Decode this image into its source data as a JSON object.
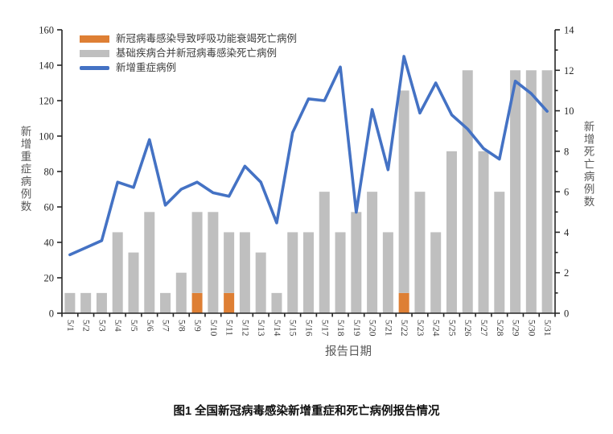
{
  "chart_data": {
    "type": "combo-bar-line",
    "categories": [
      "5/1",
      "5/2",
      "5/3",
      "5/4",
      "5/5",
      "5/6",
      "5/7",
      "5/8",
      "5/9",
      "5/10",
      "5/11",
      "5/12",
      "5/13",
      "5/14",
      "5/15",
      "5/16",
      "5/17",
      "5/18",
      "5/19",
      "5/20",
      "5/21",
      "5/22",
      "5/23",
      "5/24",
      "5/25",
      "5/26",
      "5/27",
      "5/28",
      "5/29",
      "5/30",
      "5/31"
    ],
    "series": [
      {
        "name": "新冠病毒感染导致呼吸功能衰竭死亡病例",
        "type": "bar",
        "stack": "deaths",
        "axis": "right",
        "color": "#DE7F34",
        "values": [
          0,
          0,
          0,
          0,
          0,
          0,
          0,
          0,
          1,
          0,
          1,
          0,
          0,
          0,
          0,
          0,
          0,
          0,
          0,
          0,
          0,
          1,
          0,
          0,
          0,
          0,
          0,
          0,
          0,
          0,
          0
        ]
      },
      {
        "name": "基础疾病合并新冠病毒感染死亡病例",
        "type": "bar",
        "stack": "deaths",
        "axis": "right",
        "color": "#BFBFBF",
        "values": [
          1,
          1,
          1,
          4,
          3,
          5,
          1,
          2,
          4,
          5,
          3,
          4,
          3,
          1,
          4,
          4,
          6,
          4,
          5,
          6,
          4,
          10,
          6,
          4,
          8,
          12,
          8,
          6,
          12,
          12,
          12
        ]
      },
      {
        "name": "新增重症病例",
        "type": "line",
        "axis": "left",
        "color": "#4472C4",
        "values": [
          33,
          37,
          41,
          74,
          71,
          98,
          61,
          70,
          74,
          68,
          66,
          83,
          74,
          51,
          102,
          121,
          120,
          139,
          57,
          115,
          81,
          145,
          113,
          130,
          112,
          104,
          93,
          87,
          131,
          124,
          114
        ]
      }
    ],
    "left_axis": {
      "label": "新增重症病例数",
      "min": 0,
      "max": 160,
      "step": 20
    },
    "right_axis": {
      "label": "新增死亡病例数",
      "min": 0,
      "max": 14,
      "step": 2,
      "minor_step": 1
    },
    "xlabel": "报告日期",
    "legend_position": "top-left-inside",
    "grid": false
  },
  "caption": "图1 全国新冠病毒感染新增重症和死亡病例报告情况",
  "colors": {
    "line_blue": "#4472C4",
    "bar_gray": "#BFBFBF",
    "bar_orange": "#DE7F34",
    "axis_line": "#262626",
    "tick_text": "#262626",
    "date_text": "#3a3a3a",
    "axis_title_text": "#595959"
  }
}
